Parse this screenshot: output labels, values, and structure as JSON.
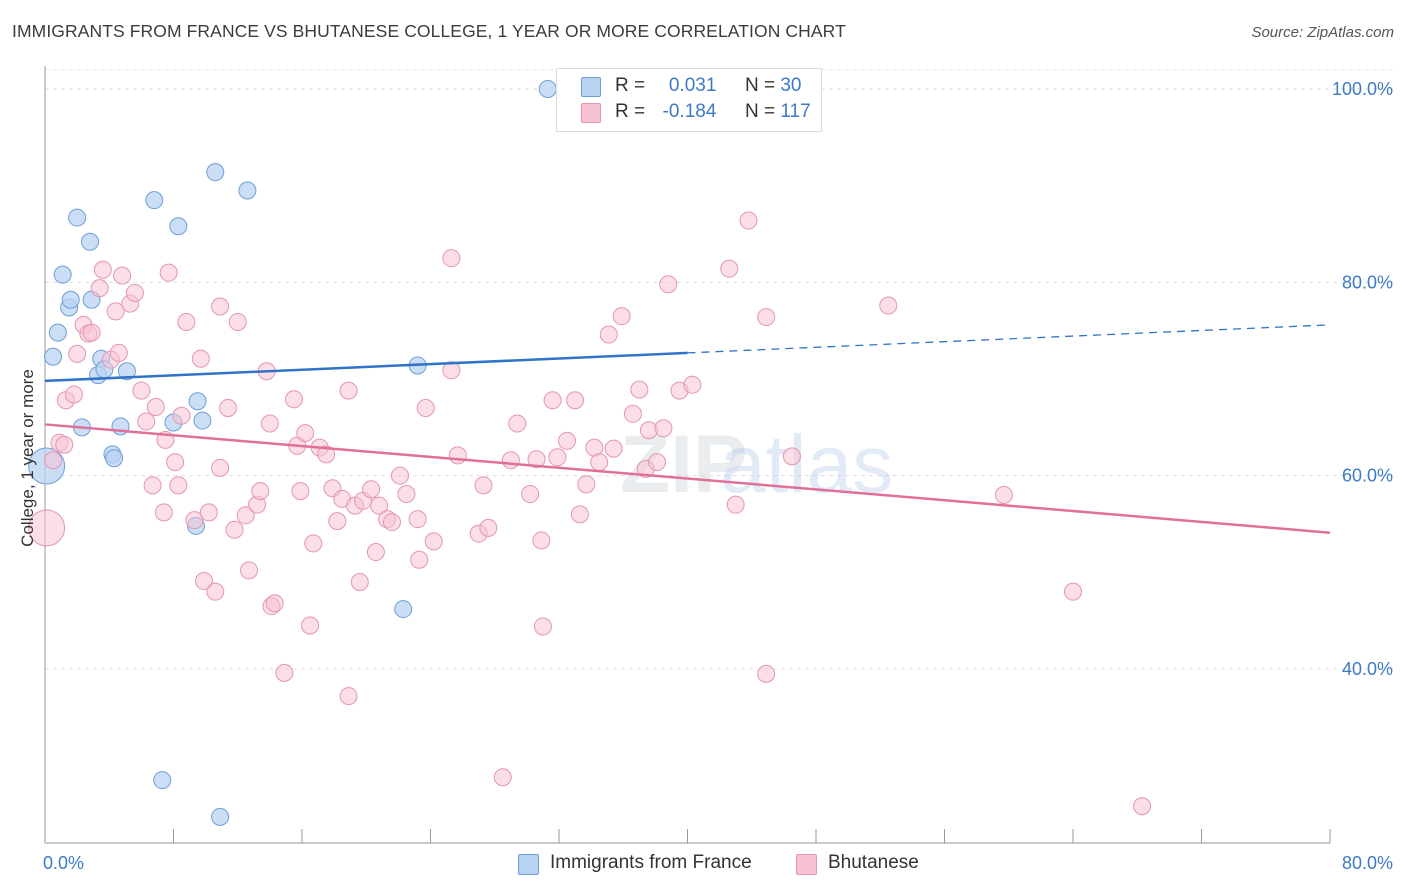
{
  "title": "IMMIGRANTS FROM FRANCE VS BHUTANESE COLLEGE, 1 YEAR OR MORE CORRELATION CHART",
  "source": "Source: ZipAtlas.com",
  "watermark": "ZIPatlas",
  "legend_top": {
    "rows": [
      {
        "r_label": "R =",
        "r_value": "0.031",
        "n_label": "N =",
        "n_value": "30"
      },
      {
        "r_label": "R =",
        "r_value": "-0.184",
        "n_label": "N =",
        "n_value": "117"
      }
    ]
  },
  "legend_bottom": [
    "Immigrants from France",
    "Bhutanese"
  ],
  "chart_data": {
    "type": "scatter",
    "ylabel": "College, 1 year or more",
    "xlim": [
      0,
      80
    ],
    "ylim": [
      22,
      103
    ],
    "x_ticks": [
      "0.0%",
      "80.0%"
    ],
    "y_ticks": [
      "100.0%",
      "80.0%",
      "60.0%",
      "40.0%"
    ],
    "y_tick_values": [
      100,
      80,
      60,
      40
    ],
    "grid": true,
    "colors": {
      "france_fill": "#b9d3f2",
      "france_stroke": "#6d9fd8",
      "france_line": "#2f74c8",
      "bhutan_fill": "#f7c3d4",
      "bhutan_stroke": "#e596b0",
      "bhutan_line": "#e0709a"
    },
    "series": [
      {
        "name": "Immigrants from France",
        "trend": {
          "x0": 0,
          "y0": 69.8,
          "x1": 40,
          "y1": 72.7,
          "dash_x1": 80,
          "dash_y1": 75.6
        },
        "points": [
          [
            0.1,
            61.0,
            "big"
          ],
          [
            0.5,
            72.3
          ],
          [
            0.8,
            74.8
          ],
          [
            1.1,
            80.8
          ],
          [
            1.5,
            77.4
          ],
          [
            1.6,
            78.2
          ],
          [
            2.0,
            86.7
          ],
          [
            2.3,
            65.0
          ],
          [
            2.8,
            84.2
          ],
          [
            2.9,
            78.2
          ],
          [
            3.3,
            70.4
          ],
          [
            3.5,
            72.1
          ],
          [
            3.7,
            71.0
          ],
          [
            4.2,
            62.2
          ],
          [
            4.3,
            61.8
          ],
          [
            4.7,
            65.1
          ],
          [
            5.1,
            70.8
          ],
          [
            6.8,
            88.5
          ],
          [
            7.3,
            28.5
          ],
          [
            8.0,
            65.5
          ],
          [
            8.3,
            85.8
          ],
          [
            9.4,
            54.8
          ],
          [
            9.5,
            67.7
          ],
          [
            9.8,
            65.7
          ],
          [
            10.6,
            91.4
          ],
          [
            10.9,
            24.7
          ],
          [
            12.6,
            89.5
          ],
          [
            22.3,
            46.2
          ],
          [
            23.2,
            71.4
          ],
          [
            31.3,
            100.0
          ]
        ]
      },
      {
        "name": "Bhutanese",
        "trend": {
          "x0": 0,
          "y0": 65.3,
          "x1": 80,
          "y1": 54.1
        },
        "points": [
          [
            0.1,
            54.6,
            "big"
          ],
          [
            0.5,
            61.6
          ],
          [
            0.9,
            63.4
          ],
          [
            1.2,
            63.2
          ],
          [
            1.3,
            67.8
          ],
          [
            1.8,
            68.4
          ],
          [
            2.0,
            72.6
          ],
          [
            2.4,
            75.6
          ],
          [
            2.7,
            74.7
          ],
          [
            2.9,
            74.8
          ],
          [
            3.4,
            79.4
          ],
          [
            3.6,
            81.3
          ],
          [
            4.1,
            72.0
          ],
          [
            4.4,
            77.0
          ],
          [
            4.6,
            72.7
          ],
          [
            4.8,
            80.7
          ],
          [
            5.3,
            77.8
          ],
          [
            5.6,
            78.9
          ],
          [
            6.0,
            68.8
          ],
          [
            6.3,
            65.6
          ],
          [
            6.7,
            59.0
          ],
          [
            6.9,
            67.1
          ],
          [
            7.4,
            56.2
          ],
          [
            7.5,
            63.7
          ],
          [
            7.7,
            81.0
          ],
          [
            8.1,
            61.4
          ],
          [
            8.3,
            59.0
          ],
          [
            8.5,
            66.2
          ],
          [
            8.8,
            75.9
          ],
          [
            9.3,
            55.4
          ],
          [
            9.7,
            72.1
          ],
          [
            9.9,
            49.1
          ],
          [
            10.2,
            56.2
          ],
          [
            10.6,
            48.0
          ],
          [
            10.9,
            60.8
          ],
          [
            10.9,
            77.5
          ],
          [
            11.4,
            67.0
          ],
          [
            11.8,
            54.4
          ],
          [
            12.0,
            75.9
          ],
          [
            12.5,
            55.9
          ],
          [
            12.7,
            50.2
          ],
          [
            13.2,
            57.0
          ],
          [
            13.4,
            58.4
          ],
          [
            13.8,
            70.8
          ],
          [
            14.0,
            65.4
          ],
          [
            14.1,
            46.5
          ],
          [
            14.3,
            46.8
          ],
          [
            14.9,
            39.6
          ],
          [
            15.5,
            67.9
          ],
          [
            15.7,
            63.1
          ],
          [
            15.9,
            58.4
          ],
          [
            16.2,
            64.4
          ],
          [
            16.5,
            44.5
          ],
          [
            16.7,
            53.0
          ],
          [
            17.1,
            62.9
          ],
          [
            17.5,
            62.2
          ],
          [
            17.9,
            58.7
          ],
          [
            18.2,
            55.3
          ],
          [
            18.5,
            57.6
          ],
          [
            18.9,
            68.8
          ],
          [
            18.9,
            37.2
          ],
          [
            19.3,
            56.9
          ],
          [
            19.6,
            49.0
          ],
          [
            19.8,
            57.4
          ],
          [
            20.3,
            58.6
          ],
          [
            20.6,
            52.1
          ],
          [
            20.8,
            56.9
          ],
          [
            21.3,
            55.5
          ],
          [
            21.6,
            55.2
          ],
          [
            22.1,
            60.0
          ],
          [
            22.5,
            58.1
          ],
          [
            23.2,
            55.5
          ],
          [
            23.3,
            51.3
          ],
          [
            23.7,
            67.0
          ],
          [
            24.2,
            53.2
          ],
          [
            25.3,
            82.5
          ],
          [
            25.3,
            70.9
          ],
          [
            25.7,
            62.1
          ],
          [
            27.0,
            54.0
          ],
          [
            27.3,
            59.0
          ],
          [
            27.6,
            54.6
          ],
          [
            28.5,
            28.8
          ],
          [
            29.0,
            61.6
          ],
          [
            29.4,
            65.4
          ],
          [
            30.2,
            58.1
          ],
          [
            30.6,
            61.7
          ],
          [
            30.9,
            53.3
          ],
          [
            31.0,
            44.4
          ],
          [
            31.6,
            67.8
          ],
          [
            31.9,
            61.9
          ],
          [
            32.5,
            63.6
          ],
          [
            33.0,
            67.8
          ],
          [
            33.3,
            56.0
          ],
          [
            33.7,
            59.1
          ],
          [
            34.2,
            62.9
          ],
          [
            34.5,
            61.4
          ],
          [
            35.1,
            74.6
          ],
          [
            35.4,
            62.8
          ],
          [
            35.9,
            76.5
          ],
          [
            36.6,
            66.4
          ],
          [
            37.0,
            68.9
          ],
          [
            37.4,
            60.7
          ],
          [
            37.6,
            64.7
          ],
          [
            38.1,
            61.4
          ],
          [
            38.5,
            64.9
          ],
          [
            38.8,
            79.8
          ],
          [
            39.5,
            68.8
          ],
          [
            40.3,
            69.4
          ],
          [
            42.6,
            81.4
          ],
          [
            43.0,
            57.0
          ],
          [
            43.8,
            86.4
          ],
          [
            44.9,
            76.4
          ],
          [
            44.9,
            39.5
          ],
          [
            46.5,
            62.0
          ],
          [
            52.5,
            77.6
          ],
          [
            59.7,
            58.0
          ],
          [
            64.0,
            48.0
          ],
          [
            68.3,
            25.8
          ]
        ]
      }
    ]
  }
}
